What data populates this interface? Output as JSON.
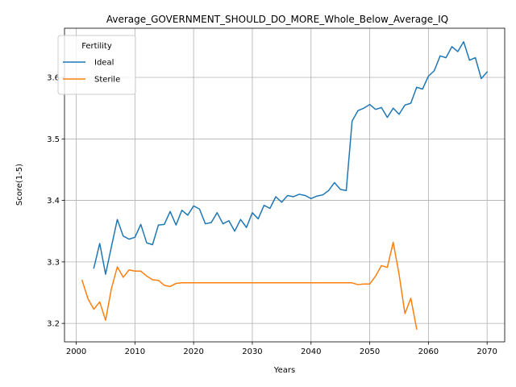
{
  "chart_data": {
    "type": "line",
    "title": "Average_GOVERNMENT_SHOULD_DO_MORE_Whole_Below_Average_IQ",
    "xlabel": "Years",
    "ylabel": "Score(1-5)",
    "xlim": [
      1998,
      2073
    ],
    "ylim": [
      3.17,
      3.68
    ],
    "xticks": [
      2000,
      2010,
      2020,
      2030,
      2040,
      2050,
      2060,
      2070
    ],
    "yticks": [
      3.2,
      3.3,
      3.4,
      3.5,
      3.6
    ],
    "ytick_labels": [
      "3.2",
      "3.3",
      "3.4",
      "3.5",
      "3.6"
    ],
    "grid": true,
    "legend": {
      "title": "Fertility",
      "placement": "top-left"
    },
    "series": [
      {
        "name": "Ideal",
        "color": "#1f77b4",
        "x": [
          2003,
          2004,
          2005,
          2006,
          2007,
          2008,
          2009,
          2010,
          2011,
          2012,
          2013,
          2014,
          2015,
          2016,
          2017,
          2018,
          2019,
          2020,
          2021,
          2022,
          2023,
          2024,
          2025,
          2026,
          2027,
          2028,
          2029,
          2030,
          2031,
          2032,
          2033,
          2034,
          2035,
          2036,
          2037,
          2038,
          2039,
          2040,
          2041,
          2042,
          2043,
          2044,
          2045,
          2046,
          2047,
          2048,
          2049,
          2050,
          2051,
          2052,
          2053,
          2054,
          2055,
          2056,
          2057,
          2058,
          2059,
          2060,
          2061,
          2062,
          2063,
          2064,
          2065,
          2066,
          2067,
          2068,
          2069,
          2070
        ],
        "values": [
          3.29,
          3.33,
          3.28,
          3.325,
          3.369,
          3.342,
          3.337,
          3.34,
          3.361,
          3.331,
          3.328,
          3.36,
          3.361,
          3.382,
          3.36,
          3.384,
          3.376,
          3.391,
          3.386,
          3.362,
          3.364,
          3.38,
          3.362,
          3.367,
          3.35,
          3.369,
          3.356,
          3.38,
          3.37,
          3.392,
          3.387,
          3.406,
          3.397,
          3.408,
          3.406,
          3.41,
          3.408,
          3.403,
          3.407,
          3.409,
          3.416,
          3.429,
          3.418,
          3.416,
          3.529,
          3.546,
          3.55,
          3.556,
          3.548,
          3.551,
          3.535,
          3.55,
          3.54,
          3.555,
          3.558,
          3.584,
          3.581,
          3.602,
          3.611,
          3.635,
          3.632,
          3.65,
          3.642,
          3.658,
          3.628,
          3.632,
          3.598,
          3.609
        ]
      },
      {
        "name": "Sterile",
        "color": "#ff7f0e",
        "x": [
          2001,
          2002,
          2003,
          2004,
          2005,
          2006,
          2007,
          2008,
          2009,
          2010,
          2011,
          2012,
          2013,
          2014,
          2015,
          2016,
          2017,
          2018,
          2019,
          2020,
          2021,
          2022,
          2023,
          2024,
          2025,
          2026,
          2027,
          2028,
          2029,
          2030,
          2031,
          2032,
          2033,
          2034,
          2035,
          2036,
          2037,
          2038,
          2039,
          2040,
          2041,
          2042,
          2043,
          2044,
          2045,
          2046,
          2047,
          2048,
          2049,
          2050,
          2051,
          2052,
          2053,
          2054,
          2055,
          2056,
          2057,
          2058
        ],
        "values": [
          3.27,
          3.24,
          3.223,
          3.235,
          3.205,
          3.257,
          3.292,
          3.275,
          3.287,
          3.285,
          3.285,
          3.277,
          3.271,
          3.27,
          3.262,
          3.26,
          3.265,
          3.266,
          3.266,
          3.266,
          3.266,
          3.266,
          3.266,
          3.266,
          3.266,
          3.266,
          3.266,
          3.266,
          3.266,
          3.266,
          3.266,
          3.266,
          3.266,
          3.266,
          3.266,
          3.266,
          3.266,
          3.266,
          3.266,
          3.266,
          3.266,
          3.266,
          3.266,
          3.266,
          3.266,
          3.266,
          3.266,
          3.263,
          3.264,
          3.264,
          3.277,
          3.294,
          3.291,
          3.332,
          3.28,
          3.216,
          3.241,
          3.191
        ]
      }
    ]
  }
}
